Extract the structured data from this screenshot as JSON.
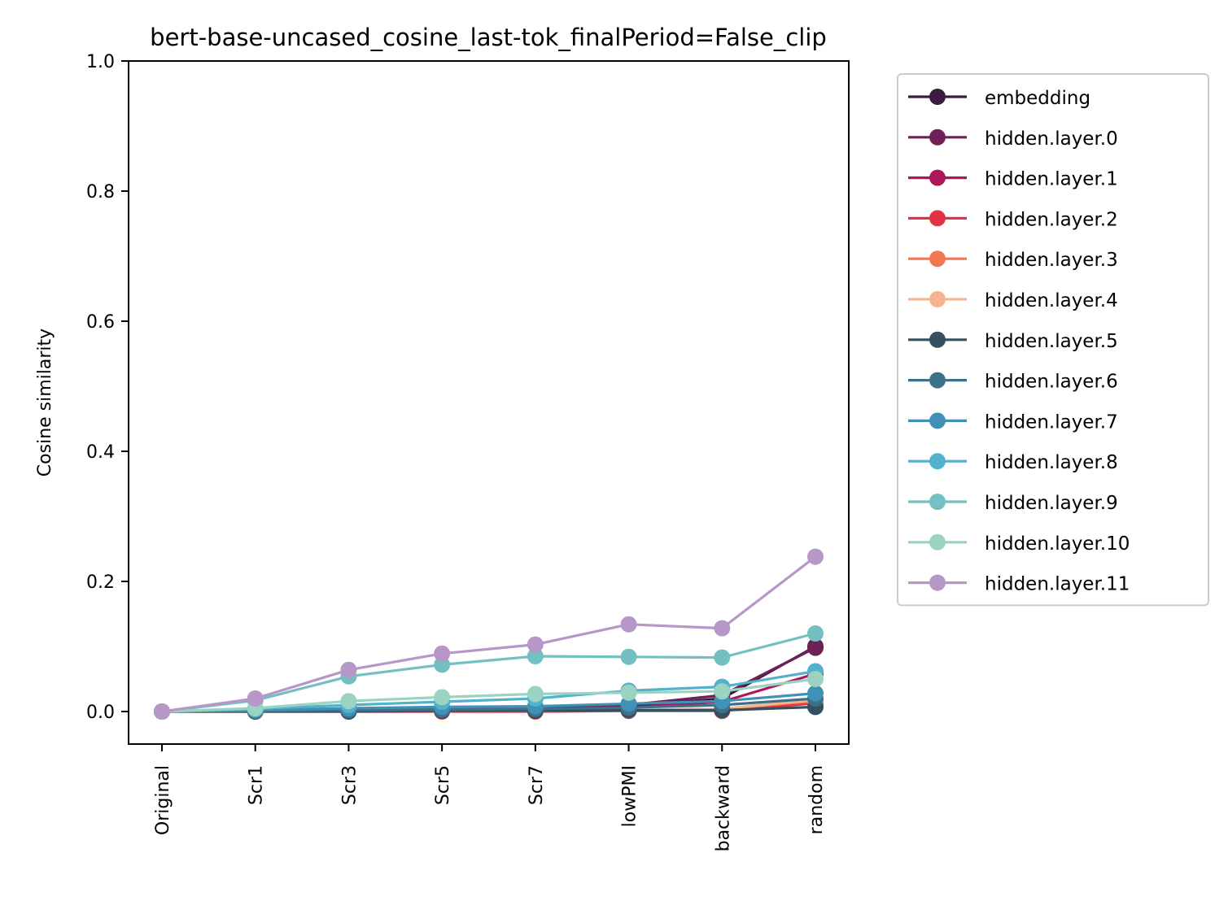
{
  "chart_data": {
    "type": "line",
    "title": "bert-base-uncased_cosine_last-tok_finalPeriod=False_clip",
    "xlabel": "",
    "ylabel": "Cosine similarity",
    "ylim": [
      -0.05,
      1.0
    ],
    "yticks": [
      "0.0",
      "0.2",
      "0.4",
      "0.6",
      "0.8",
      "1.0"
    ],
    "ytick_values": [
      0.0,
      0.2,
      0.4,
      0.6,
      0.8,
      1.0
    ],
    "categories": [
      "Original",
      "Scr1",
      "Scr3",
      "Scr5",
      "Scr7",
      "lowPMI",
      "backward",
      "random"
    ],
    "grid": false,
    "legend_position": "outside-right",
    "series": [
      {
        "name": "embedding",
        "color": "#3b1c3f",
        "values": [
          0.0,
          0.001,
          0.002,
          0.003,
          0.004,
          0.008,
          0.02,
          0.1
        ]
      },
      {
        "name": "hidden.layer.0",
        "color": "#701f57",
        "values": [
          0.0,
          0.001,
          0.002,
          0.003,
          0.004,
          0.01,
          0.025,
          0.098
        ]
      },
      {
        "name": "hidden.layer.1",
        "color": "#ad1759",
        "values": [
          0.0,
          0.001,
          0.002,
          0.002,
          0.003,
          0.006,
          0.015,
          0.058
        ]
      },
      {
        "name": "hidden.layer.2",
        "color": "#e13342",
        "values": [
          0.0,
          0.0,
          0.0,
          0.0,
          0.0,
          0.001,
          0.001,
          0.013
        ]
      },
      {
        "name": "hidden.layer.3",
        "color": "#f37651",
        "values": [
          0.0,
          0.0,
          0.001,
          0.001,
          0.001,
          0.002,
          0.004,
          0.016
        ]
      },
      {
        "name": "hidden.layer.4",
        "color": "#f6b48f",
        "values": [
          0.0,
          0.0,
          0.001,
          0.001,
          0.001,
          0.002,
          0.004,
          0.018
        ]
      },
      {
        "name": "hidden.layer.5",
        "color": "#35505f",
        "values": [
          0.0,
          0.0,
          0.0,
          0.001,
          0.001,
          0.002,
          0.002,
          0.007
        ]
      },
      {
        "name": "hidden.layer.6",
        "color": "#3e7089",
        "values": [
          0.0,
          0.001,
          0.002,
          0.003,
          0.004,
          0.006,
          0.01,
          0.02
        ]
      },
      {
        "name": "hidden.layer.7",
        "color": "#3f92b5",
        "values": [
          0.0,
          0.002,
          0.005,
          0.007,
          0.008,
          0.012,
          0.016,
          0.028
        ]
      },
      {
        "name": "hidden.layer.8",
        "color": "#52b1cc",
        "values": [
          0.0,
          0.004,
          0.01,
          0.015,
          0.02,
          0.032,
          0.038,
          0.062
        ]
      },
      {
        "name": "hidden.layer.9",
        "color": "#73bfc1",
        "values": [
          0.0,
          0.017,
          0.054,
          0.072,
          0.085,
          0.084,
          0.083,
          0.12
        ]
      },
      {
        "name": "hidden.layer.10",
        "color": "#9ad3c1",
        "values": [
          0.0,
          0.005,
          0.016,
          0.022,
          0.027,
          0.029,
          0.031,
          0.05
        ]
      },
      {
        "name": "hidden.layer.11",
        "color": "#b796c8",
        "values": [
          0.0,
          0.02,
          0.064,
          0.089,
          0.103,
          0.134,
          0.128,
          0.238
        ]
      }
    ]
  }
}
